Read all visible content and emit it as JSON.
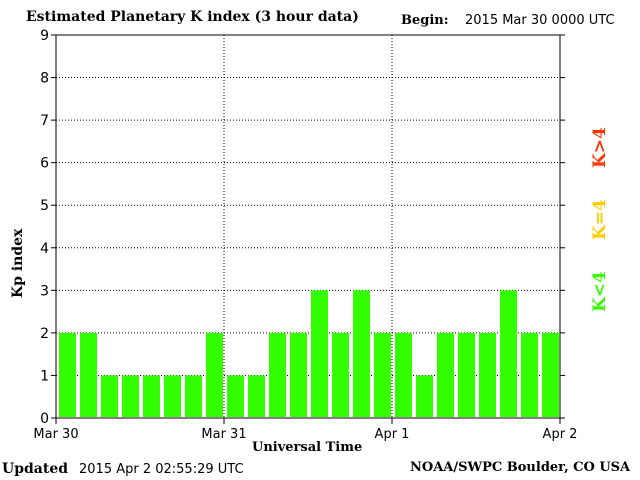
{
  "header": {
    "title": "Estimated Planetary K index (3 hour data)",
    "begin_label": "Begin:",
    "begin_value": "2015 Mar 30 0000 UTC"
  },
  "footer": {
    "updated_label": "Updated",
    "updated_value": "2015 Apr  2 02:55:29 UTC",
    "credit": "NOAA/SWPC Boulder, CO USA"
  },
  "legend": {
    "high": {
      "text": "K>4",
      "color": "#ff3300"
    },
    "equal": {
      "text": "K=4",
      "color": "#ffcc00"
    },
    "low": {
      "text": "K<4",
      "color": "#33ff00"
    }
  },
  "chart_data": {
    "type": "bar",
    "title": "Estimated Planetary K index (3 hour data)",
    "xlabel": "Universal Time",
    "ylabel": "Kp index",
    "ylim": [
      0,
      9
    ],
    "yticks": [
      "0",
      "1",
      "2",
      "3",
      "4",
      "5",
      "6",
      "7",
      "8",
      "9"
    ],
    "xticks": [
      "Mar 30",
      "Mar 31",
      "Apr 1",
      "Apr 2"
    ],
    "grid": true,
    "bar_color": "#33ff00",
    "values": [
      2,
      2,
      1,
      1,
      1,
      1,
      1,
      2,
      1,
      1,
      2,
      2,
      3,
      2,
      3,
      2,
      2,
      1,
      2,
      2,
      2,
      3,
      2,
      2
    ]
  }
}
